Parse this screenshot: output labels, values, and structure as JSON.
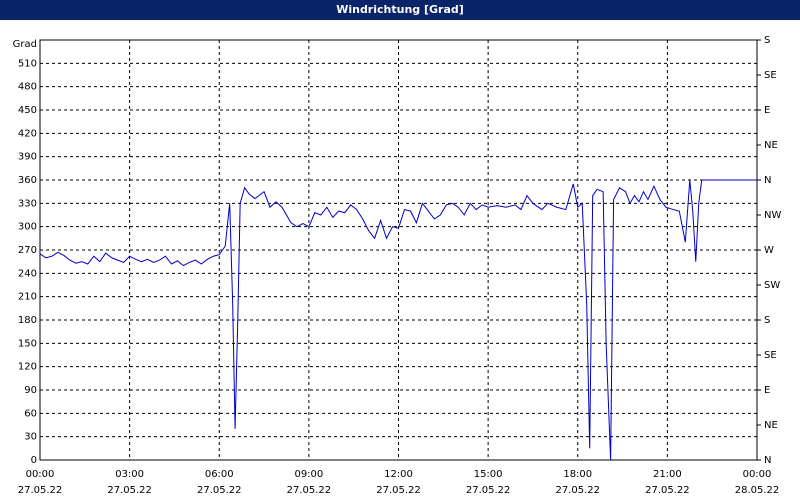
{
  "chart_data": {
    "type": "line",
    "title": "Windrichtung [Grad]",
    "y_label": "Grad",
    "xlim": [
      0,
      24
    ],
    "ylim": [
      0,
      540
    ],
    "y2lim": [
      0,
      540
    ],
    "grid": true,
    "xticks": [
      {
        "value": 0,
        "label": "00:00",
        "date": "27.05.22"
      },
      {
        "value": 3,
        "label": "03:00",
        "date": "27.05.22"
      },
      {
        "value": 6,
        "label": "06:00",
        "date": "27.05.22"
      },
      {
        "value": 9,
        "label": "09:00",
        "date": "27.05.22"
      },
      {
        "value": 12,
        "label": "12:00",
        "date": "27.05.22"
      },
      {
        "value": 15,
        "label": "15:00",
        "date": "27.05.22"
      },
      {
        "value": 18,
        "label": "18:00",
        "date": "27.05.22"
      },
      {
        "value": 21,
        "label": "21:00",
        "date": "27.05.22"
      },
      {
        "value": 24,
        "label": "00:00",
        "date": "28.05.22"
      }
    ],
    "yticks": [
      0,
      30,
      60,
      90,
      120,
      150,
      180,
      210,
      240,
      270,
      300,
      330,
      360,
      390,
      420,
      450,
      480,
      510
    ],
    "y2ticks": [
      {
        "value": 0,
        "label": "N"
      },
      {
        "value": 45,
        "label": "NE"
      },
      {
        "value": 90,
        "label": "E"
      },
      {
        "value": 135,
        "label": "SE"
      },
      {
        "value": 180,
        "label": "S"
      },
      {
        "value": 225,
        "label": "SW"
      },
      {
        "value": 270,
        "label": "W"
      },
      {
        "value": 315,
        "label": "NW"
      },
      {
        "value": 360,
        "label": "N"
      },
      {
        "value": 405,
        "label": "NE"
      },
      {
        "value": 450,
        "label": "E"
      },
      {
        "value": 495,
        "label": "SE"
      },
      {
        "value": 540,
        "label": "S"
      }
    ],
    "x": [
      0,
      0.2,
      0.4,
      0.6,
      0.8,
      1.0,
      1.2,
      1.4,
      1.6,
      1.8,
      2.0,
      2.2,
      2.4,
      2.6,
      2.8,
      3.0,
      3.2,
      3.4,
      3.6,
      3.8,
      4.0,
      4.2,
      4.4,
      4.6,
      4.8,
      5.0,
      5.2,
      5.4,
      5.6,
      5.8,
      6.0,
      6.2,
      6.35,
      6.45,
      6.53,
      6.62,
      6.7,
      6.85,
      7.0,
      7.2,
      7.5,
      7.7,
      7.9,
      8.1,
      8.4,
      8.6,
      8.8,
      9.0,
      9.2,
      9.4,
      9.6,
      9.8,
      10.0,
      10.2,
      10.4,
      10.6,
      10.8,
      11.0,
      11.2,
      11.4,
      11.6,
      11.8,
      12.0,
      12.2,
      12.4,
      12.6,
      12.8,
      13.0,
      13.2,
      13.4,
      13.6,
      13.8,
      14.0,
      14.2,
      14.4,
      14.6,
      14.8,
      15.0,
      15.3,
      15.6,
      15.9,
      16.1,
      16.3,
      16.5,
      16.8,
      17.0,
      17.3,
      17.6,
      17.85,
      18.0,
      18.15,
      18.3,
      18.4,
      18.5,
      18.65,
      18.85,
      18.95,
      19.1,
      19.2,
      19.4,
      19.6,
      19.75,
      19.9,
      20.05,
      20.2,
      20.35,
      20.55,
      20.75,
      20.95,
      21.2,
      21.4,
      21.6,
      21.75,
      21.85,
      21.95,
      22.05,
      22.15,
      24
    ],
    "series": [
      {
        "name": "Windrichtung",
        "color": "#0000c8",
        "values": [
          265,
          260,
          262,
          267,
          263,
          257,
          253,
          255,
          252,
          262,
          255,
          266,
          260,
          257,
          254,
          262,
          258,
          255,
          258,
          254,
          257,
          262,
          252,
          256,
          250,
          254,
          257,
          252,
          258,
          262,
          264,
          275,
          330,
          200,
          40,
          180,
          330,
          350,
          342,
          336,
          345,
          325,
          332,
          325,
          305,
          300,
          304,
          300,
          318,
          315,
          325,
          312,
          320,
          318,
          328,
          322,
          310,
          295,
          285,
          308,
          285,
          300,
          298,
          322,
          320,
          305,
          330,
          320,
          310,
          315,
          328,
          330,
          325,
          315,
          330,
          322,
          328,
          325,
          327,
          325,
          328,
          322,
          340,
          330,
          322,
          330,
          325,
          322,
          355,
          325,
          330,
          200,
          15,
          340,
          348,
          345,
          150,
          0,
          335,
          350,
          345,
          330,
          340,
          332,
          345,
          335,
          352,
          335,
          325,
          322,
          320,
          280,
          360,
          320,
          255,
          330,
          360,
          360
        ]
      }
    ]
  }
}
